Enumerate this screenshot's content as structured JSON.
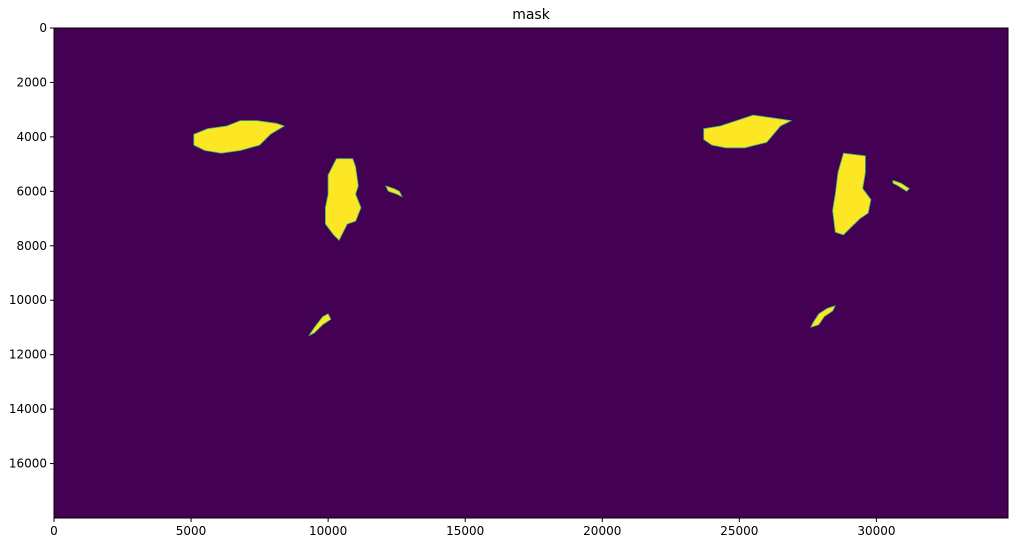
{
  "chart_data": {
    "type": "heatmap",
    "title": "mask",
    "xlabel": "",
    "ylabel": "",
    "xlim": [
      0,
      34800
    ],
    "ylim": [
      18000,
      0
    ],
    "y_axis_inverted": true,
    "grid": false,
    "colormap": "viridis",
    "value_colors": {
      "0": "#440154",
      "1": "#fde725"
    },
    "x_ticks": [
      0,
      5000,
      10000,
      15000,
      20000,
      25000,
      30000
    ],
    "x_tick_labels": [
      "0",
      "5000",
      "10000",
      "15000",
      "20000",
      "25000",
      "30000"
    ],
    "y_ticks": [
      0,
      2000,
      4000,
      6000,
      8000,
      10000,
      12000,
      14000,
      16000
    ],
    "y_tick_labels": [
      "0",
      "2000",
      "4000",
      "6000",
      "8000",
      "10000",
      "12000",
      "14000",
      "16000"
    ],
    "regions": [
      {
        "value": 1,
        "shape": [
          [
            5100,
            3900
          ],
          [
            5600,
            3700
          ],
          [
            6300,
            3600
          ],
          [
            6800,
            3400
          ],
          [
            7400,
            3400
          ],
          [
            8100,
            3500
          ],
          [
            8400,
            3600
          ],
          [
            7900,
            3900
          ],
          [
            7500,
            4300
          ],
          [
            6800,
            4500
          ],
          [
            6100,
            4600
          ],
          [
            5500,
            4500
          ],
          [
            5100,
            4300
          ]
        ]
      },
      {
        "value": 1,
        "shape": [
          [
            10300,
            4800
          ],
          [
            10900,
            4800
          ],
          [
            11000,
            5100
          ],
          [
            11100,
            5800
          ],
          [
            11000,
            6100
          ],
          [
            11200,
            6600
          ],
          [
            11000,
            7100
          ],
          [
            10700,
            7200
          ],
          [
            10400,
            7800
          ],
          [
            10200,
            7600
          ],
          [
            9900,
            7200
          ],
          [
            9900,
            6600
          ],
          [
            10000,
            6100
          ],
          [
            10000,
            5400
          ]
        ]
      },
      {
        "value": 1,
        "shape": [
          [
            12100,
            5800
          ],
          [
            12400,
            5900
          ],
          [
            12600,
            6000
          ],
          [
            12700,
            6200
          ],
          [
            12500,
            6100
          ],
          [
            12200,
            6000
          ]
        ]
      },
      {
        "value": 1,
        "shape": [
          [
            10000,
            10500
          ],
          [
            9800,
            10600
          ],
          [
            9500,
            11000
          ],
          [
            9300,
            11300
          ],
          [
            9500,
            11200
          ],
          [
            9800,
            10900
          ],
          [
            10100,
            10700
          ]
        ]
      },
      {
        "value": 1,
        "shape": [
          [
            23700,
            3700
          ],
          [
            24300,
            3600
          ],
          [
            24900,
            3400
          ],
          [
            25500,
            3200
          ],
          [
            26200,
            3300
          ],
          [
            26900,
            3400
          ],
          [
            26500,
            3600
          ],
          [
            26000,
            4200
          ],
          [
            25200,
            4400
          ],
          [
            24500,
            4400
          ],
          [
            24000,
            4300
          ],
          [
            23700,
            4100
          ]
        ]
      },
      {
        "value": 1,
        "shape": [
          [
            28800,
            4600
          ],
          [
            29600,
            4700
          ],
          [
            29600,
            5300
          ],
          [
            29500,
            5900
          ],
          [
            29800,
            6300
          ],
          [
            29700,
            6800
          ],
          [
            29400,
            7000
          ],
          [
            29100,
            7300
          ],
          [
            28800,
            7600
          ],
          [
            28500,
            7500
          ],
          [
            28400,
            6700
          ],
          [
            28500,
            6100
          ],
          [
            28600,
            5300
          ]
        ]
      },
      {
        "value": 1,
        "shape": [
          [
            30600,
            5600
          ],
          [
            30900,
            5700
          ],
          [
            31200,
            5900
          ],
          [
            31100,
            6000
          ],
          [
            30800,
            5800
          ],
          [
            30600,
            5700
          ]
        ]
      },
      {
        "value": 1,
        "shape": [
          [
            28500,
            10200
          ],
          [
            28200,
            10300
          ],
          [
            27900,
            10500
          ],
          [
            27700,
            10800
          ],
          [
            27600,
            11000
          ],
          [
            27900,
            10900
          ],
          [
            28100,
            10600
          ],
          [
            28400,
            10400
          ]
        ]
      }
    ]
  }
}
